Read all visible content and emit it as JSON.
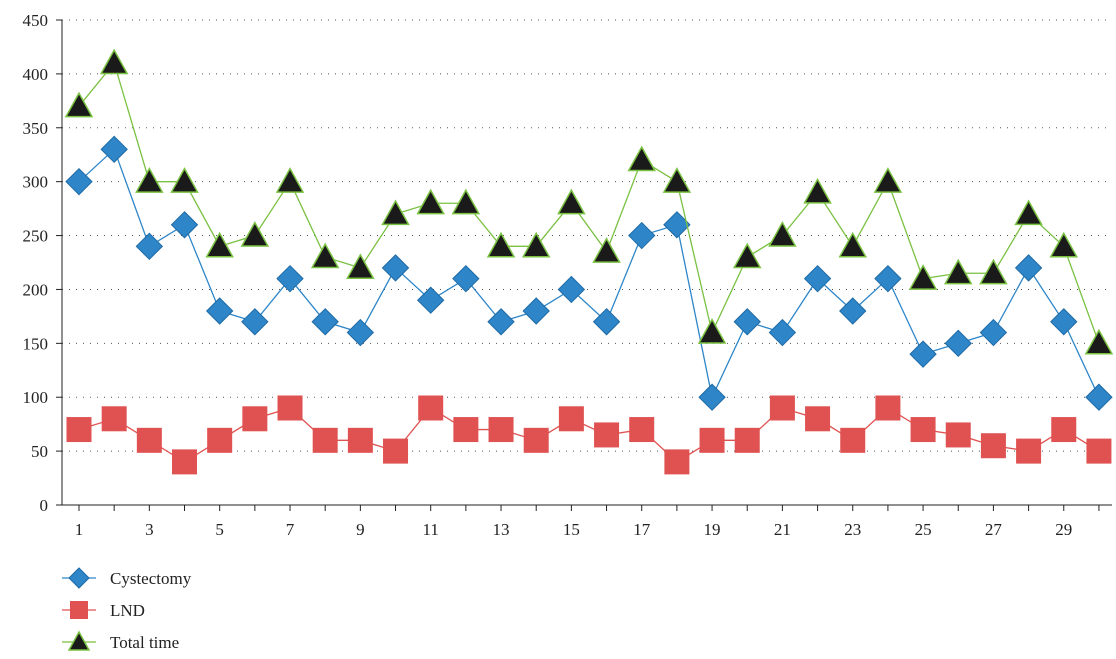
{
  "chart_data": {
    "type": "line",
    "title": "",
    "xlabel": "",
    "ylabel": "",
    "x": [
      1,
      2,
      3,
      4,
      5,
      6,
      7,
      8,
      9,
      10,
      11,
      12,
      13,
      14,
      15,
      16,
      17,
      18,
      19,
      20,
      21,
      22,
      23,
      24,
      25,
      26,
      27,
      28,
      29,
      30
    ],
    "x_tick_labels": [
      "1",
      "3",
      "5",
      "7",
      "9",
      "11",
      "13",
      "15",
      "17",
      "19",
      "21",
      "23",
      "25",
      "27",
      "29"
    ],
    "ylim": [
      0,
      450
    ],
    "y_ticks": [
      0,
      50,
      100,
      150,
      200,
      250,
      300,
      350,
      400,
      450
    ],
    "grid": "horizontal dotted",
    "legend_position": "bottom-left",
    "series": [
      {
        "name": "Cystectomy",
        "color": "#2e86c8",
        "marker": "diamond",
        "values": [
          300,
          330,
          240,
          260,
          180,
          170,
          210,
          170,
          160,
          220,
          190,
          210,
          170,
          180,
          200,
          170,
          250,
          260,
          100,
          170,
          160,
          210,
          180,
          210,
          140,
          150,
          160,
          220,
          170,
          100
        ]
      },
      {
        "name": "LND",
        "color": "#e05252",
        "marker": "square",
        "values": [
          70,
          80,
          60,
          40,
          60,
          80,
          90,
          60,
          60,
          50,
          90,
          70,
          70,
          60,
          80,
          65,
          70,
          40,
          60,
          60,
          90,
          80,
          60,
          90,
          70,
          65,
          55,
          50,
          70,
          50
        ]
      },
      {
        "name": "Total time",
        "color": "#7ac142",
        "marker": "triangle",
        "marker_fill": "#1a1a1a",
        "values": [
          370,
          410,
          300,
          300,
          240,
          250,
          300,
          230,
          220,
          270,
          280,
          280,
          240,
          240,
          280,
          235,
          320,
          300,
          160,
          230,
          250,
          290,
          240,
          300,
          210,
          215,
          215,
          270,
          240,
          150
        ]
      }
    ]
  }
}
